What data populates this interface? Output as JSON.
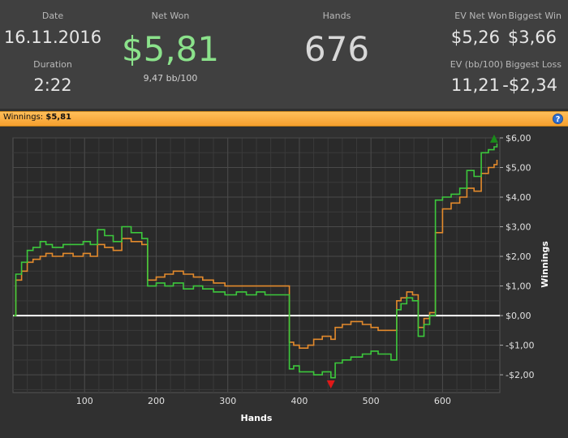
{
  "header": {
    "date_label": "Date",
    "date_value": "16.11.2016",
    "duration_label": "Duration",
    "duration_value": "2:22",
    "net_won_label": "Net Won",
    "net_won_value": "$5,81",
    "bb100_value": "9,47 bb/100",
    "hands_label": "Hands",
    "hands_value": "676",
    "ev_net_won_label": "EV Net Won",
    "ev_net_won_value": "$5,26",
    "biggest_win_label": "Biggest Win",
    "biggest_win_value": "$3,66",
    "ev_bb100_label": "EV (bb/100)",
    "ev_bb100_value": "11,21",
    "biggest_loss_label": "Biggest Loss",
    "biggest_loss_value": "-$2,34"
  },
  "winnings_bar": {
    "label": "Winnings:",
    "value": "$5,81",
    "help_icon": "?"
  },
  "colors": {
    "net_won": "#8be28b",
    "winnings_line": "#3cc83c",
    "ev_line": "#e38a2c",
    "zero_line": "#ffffff",
    "max_marker": "#1a8a1a",
    "min_marker": "#e01818",
    "bar": "#f5a02e"
  },
  "chart_data": {
    "type": "line",
    "xlabel": "Hands",
    "ylabel": "Winnings",
    "xlim": [
      0,
      680
    ],
    "ylim": [
      -2.6,
      6.0
    ],
    "x_ticks": [
      100,
      200,
      300,
      400,
      500,
      600
    ],
    "x_tick_labels": [
      "100",
      "200",
      "300",
      "400",
      "500",
      "600"
    ],
    "y_ticks": [
      6,
      5,
      4,
      3,
      2,
      1,
      0,
      -1,
      -2
    ],
    "y_tick_labels": [
      "$6,00",
      "$5,00",
      "$4,00",
      "$3,00",
      "$2,00",
      "$1,00",
      "$0,00",
      "-$1,00",
      "-$2,00"
    ],
    "grid": true,
    "series": [
      {
        "color": "#3cc83c",
        "x": [
          1,
          4,
          12,
          20,
          28,
          38,
          46,
          55,
          70,
          84,
          98,
          108,
          118,
          128,
          140,
          152,
          165,
          180,
          188,
          200,
          212,
          224,
          238,
          252,
          265,
          280,
          296,
          312,
          326,
          340,
          352,
          386,
          392,
          400,
          412,
          420,
          432,
          444,
          450,
          460,
          472,
          488,
          500,
          510,
          528,
          536,
          542,
          550,
          558,
          566,
          574,
          582,
          590,
          600,
          612,
          624,
          634,
          644,
          654,
          664,
          672,
          676
        ],
        "y": [
          0.0,
          1.4,
          1.8,
          2.2,
          2.3,
          2.5,
          2.4,
          2.3,
          2.4,
          2.4,
          2.5,
          2.4,
          2.9,
          2.7,
          2.5,
          3.0,
          2.8,
          2.6,
          1.0,
          1.1,
          1.0,
          1.1,
          0.9,
          1.0,
          0.9,
          0.8,
          0.7,
          0.8,
          0.7,
          0.8,
          0.7,
          -1.8,
          -1.7,
          -1.9,
          -1.9,
          -2.0,
          -1.9,
          -2.1,
          -1.6,
          -1.5,
          -1.4,
          -1.3,
          -1.2,
          -1.3,
          -1.5,
          0.2,
          0.4,
          0.6,
          0.5,
          -0.7,
          -0.3,
          0.0,
          3.9,
          4.0,
          4.1,
          4.3,
          4.9,
          4.7,
          5.5,
          5.6,
          5.7,
          5.81
        ]
      },
      {
        "color": "#e38a2c",
        "x": [
          1,
          4,
          12,
          20,
          28,
          38,
          46,
          55,
          70,
          84,
          98,
          108,
          118,
          128,
          140,
          152,
          165,
          180,
          188,
          200,
          212,
          224,
          238,
          252,
          265,
          280,
          296,
          312,
          326,
          340,
          352,
          386,
          392,
          400,
          412,
          420,
          432,
          444,
          450,
          460,
          472,
          488,
          500,
          510,
          528,
          536,
          542,
          550,
          558,
          566,
          574,
          582,
          590,
          600,
          612,
          624,
          634,
          644,
          654,
          664,
          672,
          676
        ],
        "y": [
          0.0,
          1.2,
          1.5,
          1.8,
          1.9,
          2.0,
          2.1,
          2.0,
          2.1,
          2.0,
          2.1,
          2.0,
          2.4,
          2.3,
          2.2,
          2.6,
          2.5,
          2.4,
          1.2,
          1.3,
          1.4,
          1.5,
          1.4,
          1.3,
          1.2,
          1.1,
          1.0,
          1.0,
          1.0,
          1.0,
          1.0,
          -0.9,
          -1.0,
          -1.1,
          -1.0,
          -0.8,
          -0.7,
          -0.8,
          -0.4,
          -0.3,
          -0.2,
          -0.3,
          -0.4,
          -0.5,
          -0.5,
          0.5,
          0.6,
          0.8,
          0.7,
          -0.4,
          -0.1,
          0.1,
          2.8,
          3.6,
          3.8,
          4.0,
          4.3,
          4.2,
          4.8,
          5.0,
          5.1,
          5.26
        ]
      }
    ],
    "markers": [
      {
        "x": 672,
        "y": 5.95,
        "color": "#1a8a1a",
        "shape": "triangle-up"
      },
      {
        "x": 444,
        "y": -2.3,
        "color": "#e01818",
        "shape": "triangle-down"
      }
    ]
  }
}
